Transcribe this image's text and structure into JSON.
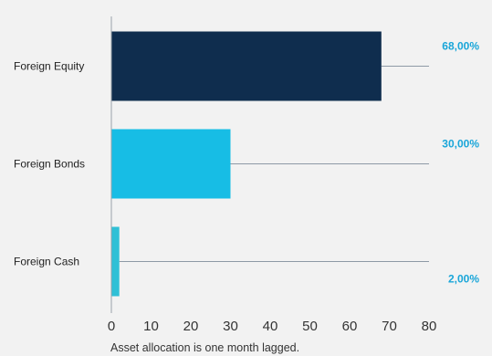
{
  "chart_data": {
    "type": "bar",
    "orientation": "horizontal",
    "categories": [
      "Foreign Equity",
      "Foreign Bonds",
      "Foreign Cash"
    ],
    "values": [
      68,
      30,
      2
    ],
    "value_labels": [
      "68,00%",
      "30,00%",
      "2,00%"
    ],
    "bar_colors": [
      "#0f2d4e",
      "#17bde5",
      "#2fc0d6"
    ],
    "label_color": "#1aa6d9",
    "leader_color": "#8e9aa6",
    "xlim": [
      0,
      80
    ],
    "xticks": [
      0,
      10,
      20,
      30,
      40,
      50,
      60,
      70,
      80
    ],
    "tick_labels": [
      "0",
      "10",
      "20",
      "30",
      "40",
      "50",
      "60",
      "70",
      "80"
    ],
    "grid": false,
    "title": "",
    "xlabel": "",
    "ylabel": ""
  },
  "footnote": "Asset allocation is one month lagged."
}
